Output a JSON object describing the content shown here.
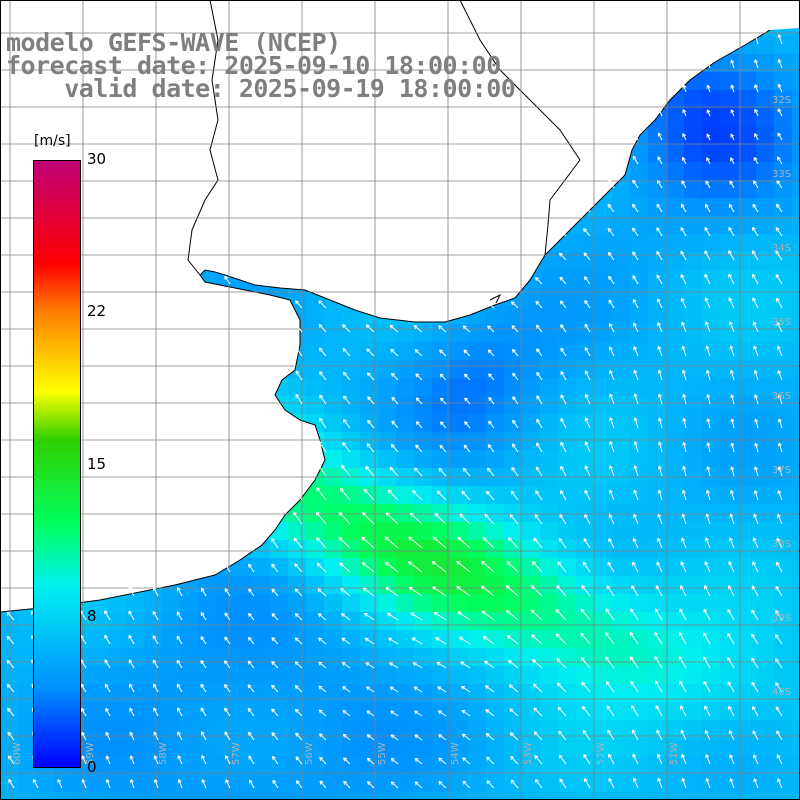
{
  "title": {
    "line1": "modelo GEFS-WAVE (NCEP)",
    "line2": "forecast date: 2025-09-10 18:00:00",
    "line3": "    valid date: 2025-09-19 18:00:00"
  },
  "colorbar": {
    "units": "[m/s]",
    "ticks": [
      "30",
      "22",
      "15",
      "8",
      "0"
    ],
    "tick_values": [
      30,
      22,
      15,
      8,
      0
    ],
    "colors": [
      "#0000ff",
      "#0090ff",
      "#00f0f0",
      "#00ff60",
      "#30d000",
      "#ffff00",
      "#ff8000",
      "#ff0000",
      "#c00078"
    ]
  },
  "lat_labels": [
    "32S",
    "33S",
    "34S",
    "35S",
    "36S",
    "37S",
    "38S",
    "39S",
    "40S"
  ],
  "lon_labels": [
    "60W",
    "59W",
    "58W",
    "57W",
    "56W",
    "55W",
    "54W",
    "53W",
    "52W",
    "51W"
  ],
  "map": {
    "variable": "wind speed",
    "wind_arrow_direction": "from south-east toward north-west",
    "max_wind_region": "south of the Río de la Plata estuary, about 12 to 14 m/s",
    "land_color": "#ffffff",
    "coast_color": "#000000",
    "grid_color": "#808080",
    "arrow_color": "#ffffff"
  }
}
